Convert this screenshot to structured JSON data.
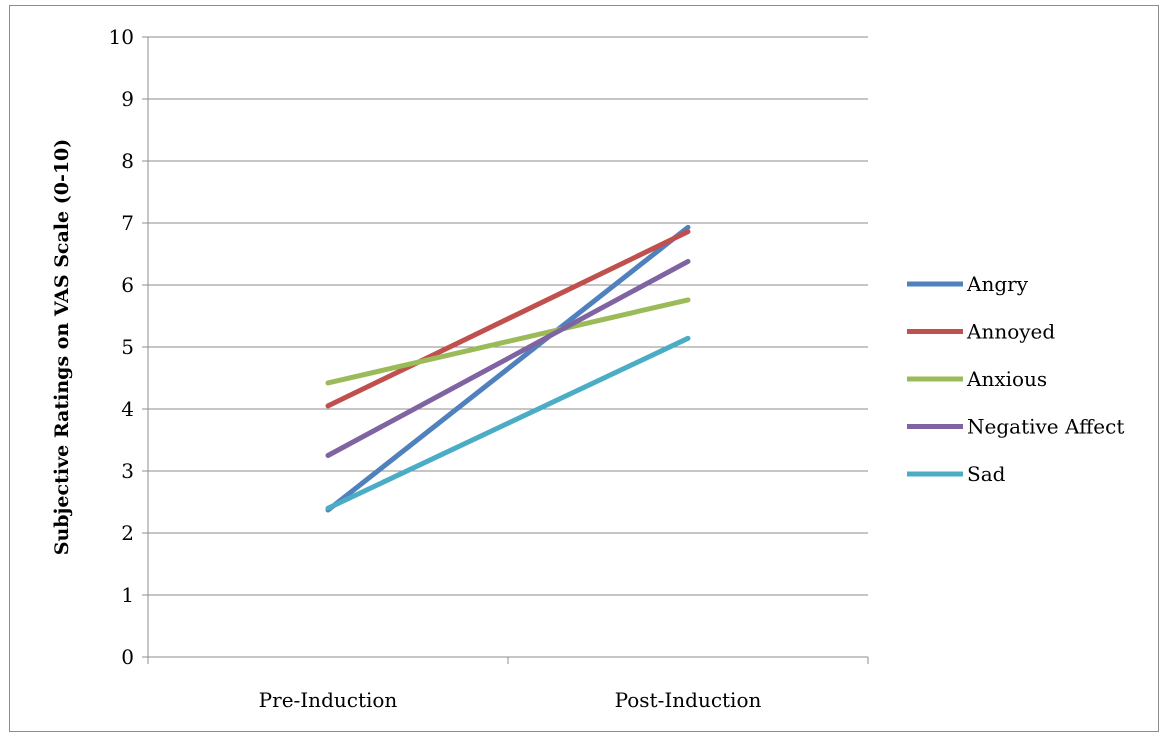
{
  "chart_data": {
    "type": "line",
    "title": "",
    "xlabel": "",
    "ylabel": "Subjective Ratings on VAS Scale (0-10)",
    "categories": [
      "Pre-Induction",
      "Post-Induction"
    ],
    "ylim": [
      0,
      10
    ],
    "yticks": [
      "0",
      "1",
      "2",
      "3",
      "4",
      "5",
      "6",
      "7",
      "8",
      "9",
      "10"
    ],
    "grid": true,
    "legend_position": "right",
    "series": [
      {
        "name": "Angry",
        "color": "#4f81bd",
        "values": [
          2.37,
          6.93
        ]
      },
      {
        "name": "Annoyed",
        "color": "#c0504d",
        "values": [
          4.05,
          6.86
        ]
      },
      {
        "name": "Anxious",
        "color": "#9bbb59",
        "values": [
          4.42,
          5.76
        ]
      },
      {
        "name": "Negative Affect",
        "color": "#8064a2",
        "values": [
          3.25,
          6.38
        ]
      },
      {
        "name": "Sad",
        "color": "#4bacc6",
        "values": [
          2.4,
          5.14
        ]
      }
    ]
  }
}
